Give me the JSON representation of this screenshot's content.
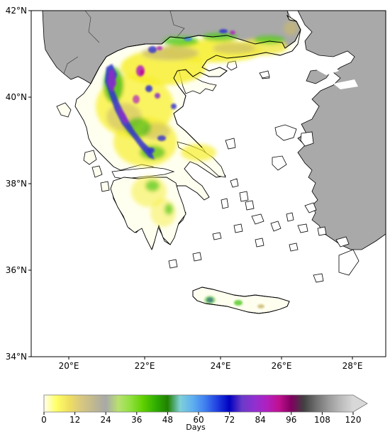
{
  "map": {
    "y_axis_labels": [
      "42°N",
      "40°N",
      "38°N",
      "36°N",
      "34°N"
    ],
    "x_axis_labels": [
      "20°E",
      "22°E",
      "24°E",
      "26°E",
      "28°E"
    ],
    "colors": {
      "land_outside": "#a9a9a9",
      "sea": "#ffffff",
      "coast": "#000000"
    }
  },
  "colorbar": {
    "title": "Days",
    "tick_labels": [
      "0",
      "12",
      "24",
      "36",
      "48",
      "60",
      "72",
      "84",
      "96",
      "108",
      "120"
    ],
    "extend": "max",
    "color_stops": [
      "#fffff0",
      "#ffff66",
      "#f0e060",
      "#d8c880",
      "#c0b890",
      "#a8a8a8",
      "#b8e070",
      "#90e040",
      "#60d000",
      "#30b000",
      "#208000",
      "#80d0d8",
      "#60b0f0",
      "#4080f0",
      "#2040e0",
      "#0000c0",
      "#6a3ac8",
      "#9030d0",
      "#b020c0",
      "#c01090",
      "#800060",
      "#404040",
      "#707070",
      "#999999",
      "#bbbbbb",
      "#d8d8d8"
    ]
  }
}
